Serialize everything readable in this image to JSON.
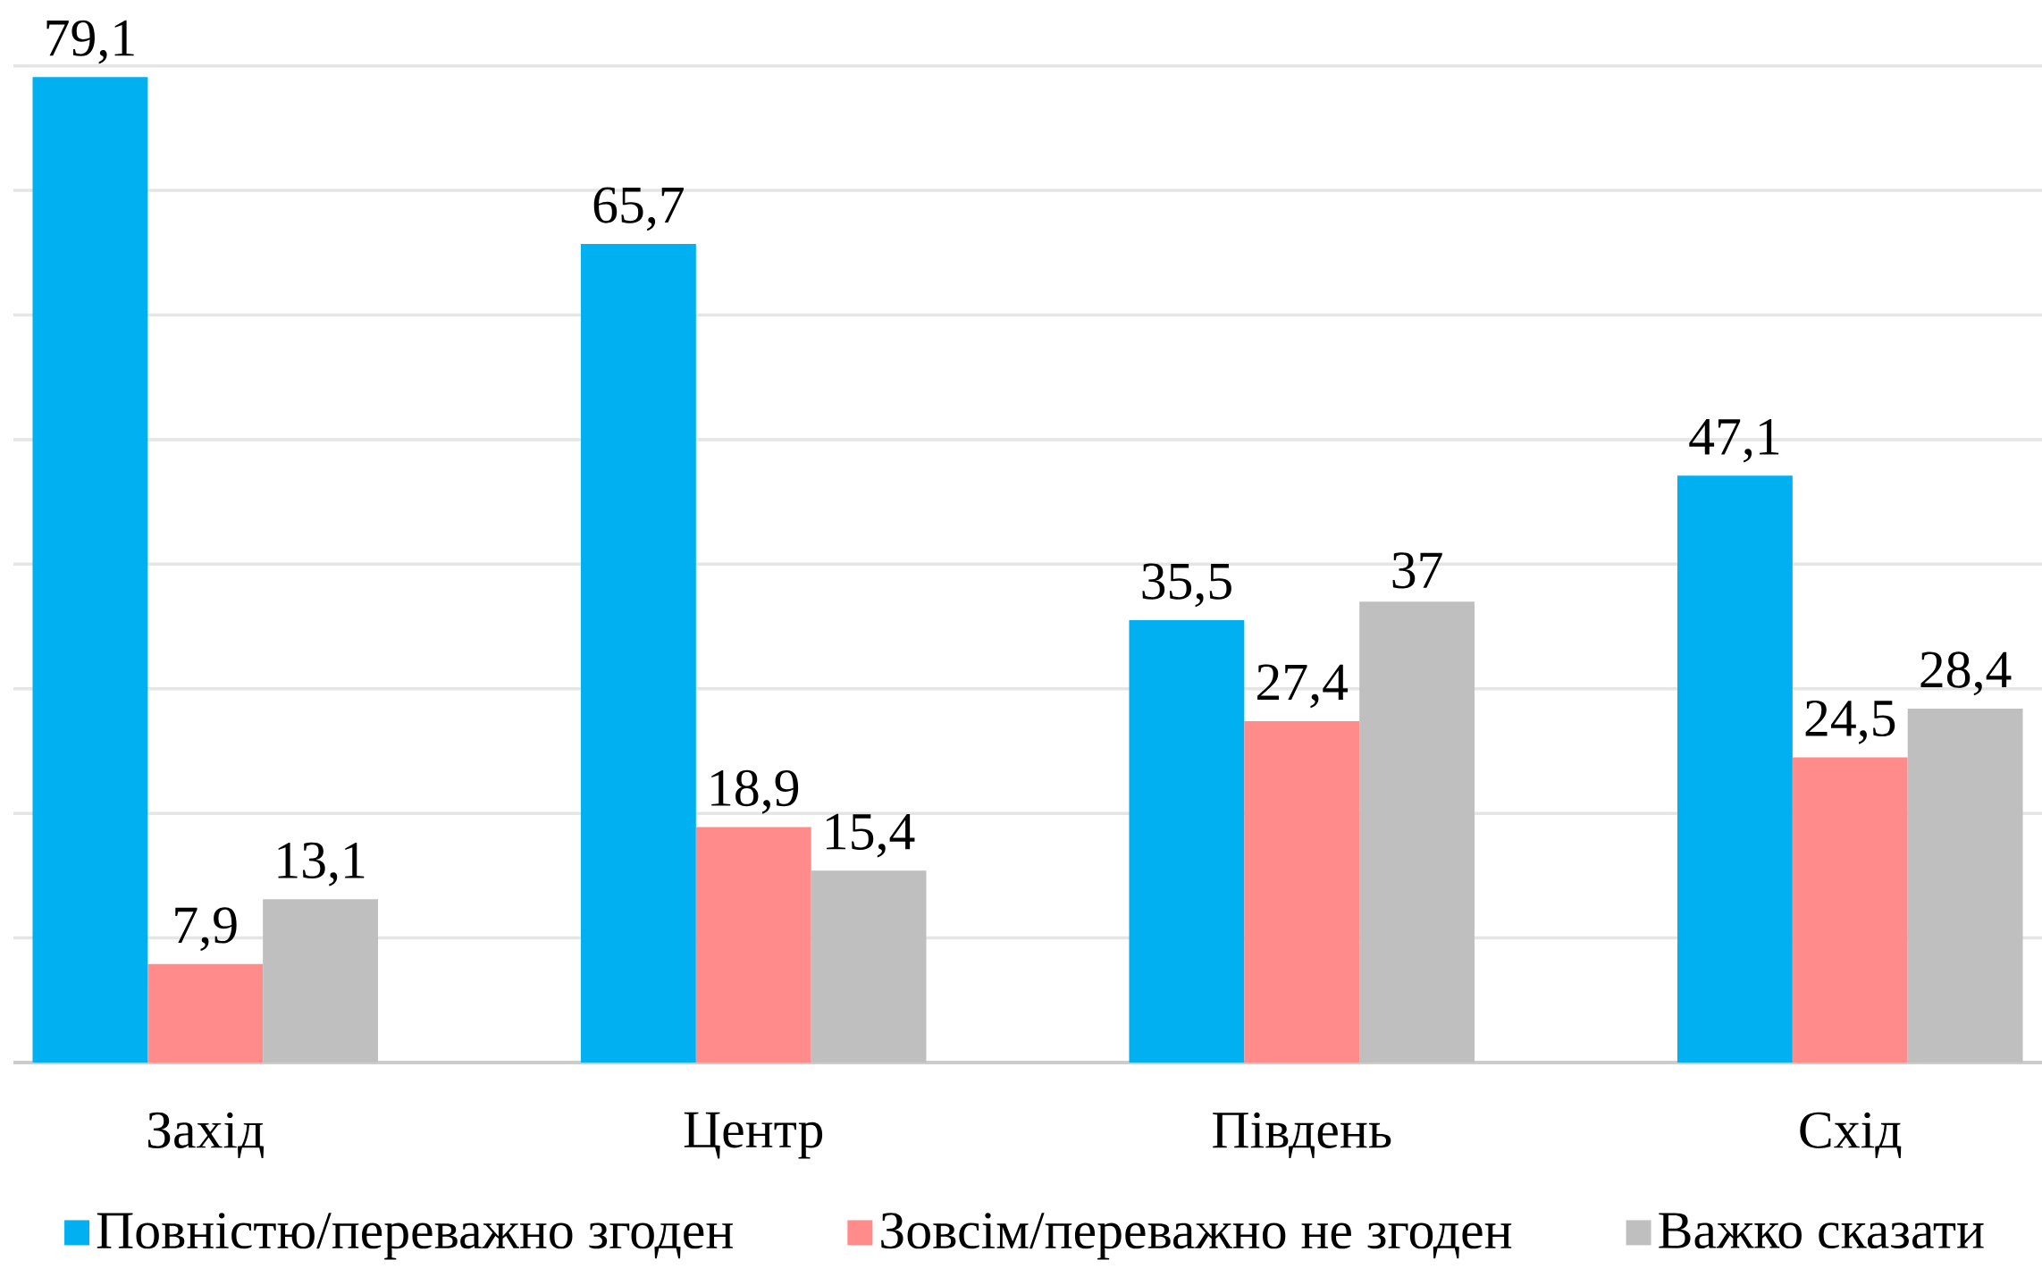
{
  "chart_data": {
    "type": "bar",
    "categories": [
      "Захід",
      "Центр",
      "Південь",
      "Схід"
    ],
    "series": [
      {
        "name": "Повністю/переважно згоден",
        "color": "#00b0f0",
        "values": [
          79.1,
          65.7,
          35.5,
          47.1
        ],
        "value_labels": [
          "79,1",
          "65,7",
          "35,5",
          "47,1"
        ]
      },
      {
        "name": "Зовсім/переважно не згоден",
        "color": "#ff8b8b",
        "values": [
          7.9,
          18.9,
          27.4,
          24.5
        ],
        "value_labels": [
          "7,9",
          "18,9",
          "27,4",
          "24,5"
        ]
      },
      {
        "name": "Важко сказати",
        "color": "#bfbfbf",
        "values": [
          13.1,
          15.4,
          37,
          28.4
        ],
        "value_labels": [
          "13,1",
          "15,4",
          "37",
          "28,4"
        ]
      }
    ],
    "yticks": [
      {
        "value": 0,
        "label": null
      },
      {
        "value": 10,
        "label": null
      },
      {
        "value": 20,
        "label": null
      },
      {
        "value": 30,
        "label": null
      },
      {
        "value": 40,
        "label": null
      },
      {
        "value": 50,
        "label": null
      },
      {
        "value": 60,
        "label": null
      },
      {
        "value": 70,
        "label": null
      },
      {
        "value": 80,
        "label": null
      }
    ],
    "tick_labels": "x",
    "grid": "y",
    "legend": "bottom"
  }
}
